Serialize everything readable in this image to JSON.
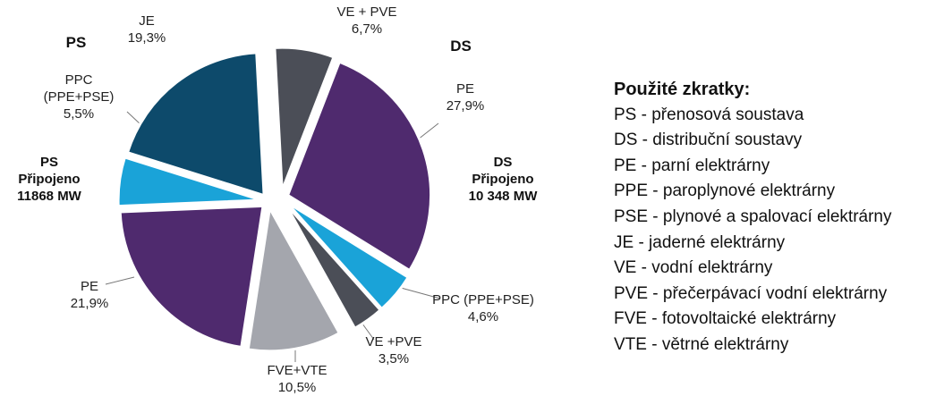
{
  "chart_data": {
    "type": "pie",
    "categories": [
      "VE + PVE",
      "PE",
      "PPC (PPE+PSE)",
      "VE +PVE",
      "FVE+VTE",
      "PE",
      "PPC (PPE+PSE)",
      "JE"
    ],
    "values": [
      6.7,
      27.9,
      4.6,
      3.5,
      10.5,
      21.9,
      5.5,
      19.3
    ],
    "value_labels": [
      "6,7%",
      "27,9%",
      "4,6%",
      "3,5%",
      "10,5%",
      "21,9%",
      "5,5%",
      "19,3%"
    ],
    "colors": [
      "#4b4e57",
      "#4f2a6e",
      "#1aa3d8",
      "#4b4e57",
      "#a4a6ad",
      "#4f2a6e",
      "#1aa3d8",
      "#0d4a6b"
    ],
    "annotations": [
      [
        "PS"
      ],
      [
        "DS"
      ],
      [
        "PS",
        "Připojeno",
        "11868 MW"
      ],
      [
        "DS",
        "Připojeno",
        "10 348 MW"
      ]
    ],
    "legend": {
      "title": "Použité zkratky:",
      "items": [
        "PS - přenosová soustava",
        "DS - distribuční soustavy",
        "PE - parní elektrárny",
        "PPE - paroplynové elektrárny",
        "PSE - plynové a spalovací elektrárny",
        "JE - jaderné elektrárny",
        "VE - vodní elektrárny",
        "PVE - přečerpávací vodní elektrárny",
        "FVE - fotovoltaické elektrárny",
        "VTE - větrné elektrárny"
      ]
    }
  }
}
